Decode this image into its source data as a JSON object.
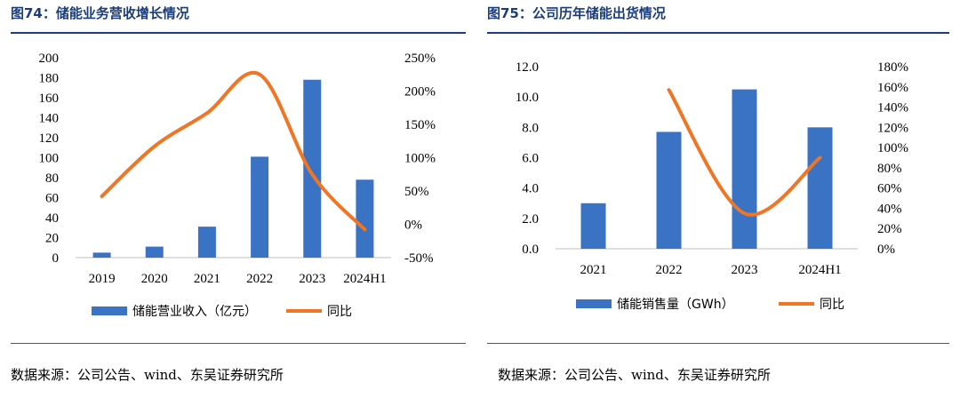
{
  "left": {
    "title": "图74：储能业务营收增长情况",
    "source": "数据来源：公司公告、wind、东吴证券研究所"
  },
  "right": {
    "title": "图75：公司历年储能出货情况",
    "source": "数据来源：公司公告、wind、东吴证券研究所"
  },
  "colors": {
    "bar": "#3a72c4",
    "line": "#f07524",
    "title": "#1a3d7c"
  },
  "chart_data": [
    {
      "type": "bar",
      "title": "储能业务营收增长情况",
      "categories": [
        "2019",
        "2020",
        "2021",
        "2022",
        "2023",
        "2024H1"
      ],
      "series": [
        {
          "name": "储能营业收入（亿元）",
          "type": "bar",
          "axis": "left",
          "values": [
            5,
            11,
            31,
            101,
            178,
            78
          ]
        },
        {
          "name": "同比",
          "type": "line",
          "axis": "right",
          "smooth": true,
          "values": [
            0.42,
            1.17,
            1.67,
            2.25,
            0.75,
            -0.08
          ]
        }
      ],
      "left_axis": {
        "min": 0,
        "max": 200,
        "ticks": [
          "200",
          "180",
          "160",
          "140",
          "120",
          "100",
          "80",
          "60",
          "40",
          "20",
          "0"
        ]
      },
      "right_axis": {
        "min": -0.5,
        "max": 2.5,
        "ticks": [
          "250%",
          "200%",
          "150%",
          "100%",
          "50%",
          "0%",
          "-50%"
        ]
      },
      "legend_position": "bottom"
    },
    {
      "type": "bar",
      "title": "公司历年储能出货情况",
      "categories": [
        "2021",
        "2022",
        "2023",
        "2024H1"
      ],
      "series": [
        {
          "name": "储能销售量（GWh）",
          "type": "bar",
          "axis": "left",
          "values": [
            3.0,
            7.7,
            10.5,
            8.0
          ]
        },
        {
          "name": "同比",
          "type": "line",
          "axis": "right",
          "smooth": true,
          "values": [
            null,
            1.57,
            0.35,
            0.9
          ]
        }
      ],
      "left_axis": {
        "min": 0,
        "max": 12,
        "ticks": [
          "12.0",
          "10.0",
          "8.0",
          "6.0",
          "4.0",
          "2.0",
          "0.0"
        ]
      },
      "right_axis": {
        "min": 0,
        "max": 1.8,
        "ticks": [
          "180%",
          "160%",
          "140%",
          "120%",
          "100%",
          "80%",
          "60%",
          "40%",
          "20%",
          "0%"
        ]
      },
      "legend_position": "bottom"
    }
  ]
}
